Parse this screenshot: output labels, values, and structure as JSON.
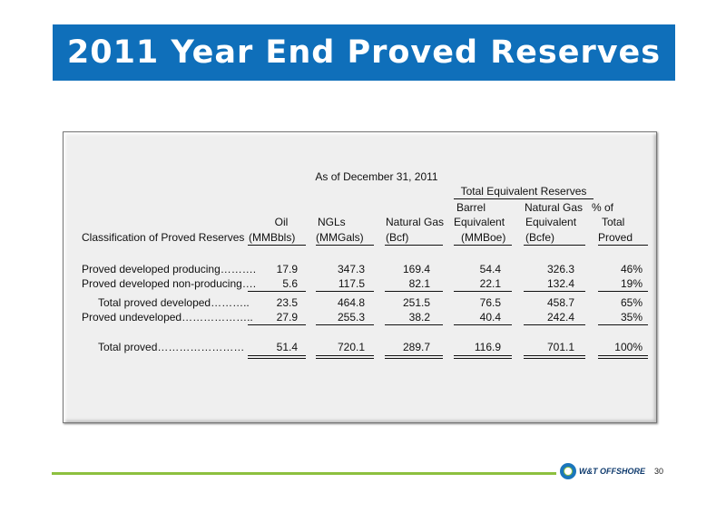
{
  "slide": {
    "title": "2011 Year End Proved Reserves",
    "page_number": "30",
    "logo_text": "W&T OFFSHORE",
    "colors": {
      "title_bar": "#0f6fba",
      "footer_line": "#8dc03f",
      "panel": "#efefef"
    }
  },
  "table": {
    "as_of": "As of December 31, 2011",
    "group_header": "Total Equivalent Reserves",
    "headers": {
      "classification": "Classification of Proved Reserves",
      "oil": [
        "Oil",
        "(MMBbls)"
      ],
      "ngls": [
        "NGLs",
        "(MMGals)"
      ],
      "gas": [
        "Natural Gas",
        "(Bcf)"
      ],
      "boe": [
        "Barrel",
        "Equivalent",
        "(MMBoe)"
      ],
      "bcfe": [
        "Natural Gas",
        "Equivalent",
        "(Bcfe)"
      ],
      "pct": [
        "% of",
        "Total",
        "Proved"
      ]
    },
    "rows": [
      {
        "label": "Proved developed producing……….",
        "oil": "17.9",
        "ngls": "347.3",
        "gas": "169.4",
        "boe": "54.4",
        "bcfe": "326.3",
        "pct": "46%"
      },
      {
        "label": "Proved developed non-producing….",
        "oil": "5.6",
        "ngls": "117.5",
        "gas": "82.1",
        "boe": "22.1",
        "bcfe": "132.4",
        "pct": "19%"
      },
      {
        "label": "Total proved developed………..",
        "oil": "23.5",
        "ngls": "464.8",
        "gas": "251.5",
        "boe": "76.5",
        "bcfe": "458.7",
        "pct": "65%"
      },
      {
        "label": "Proved undeveloped………………..",
        "oil": "27.9",
        "ngls": "255.3",
        "gas": "38.2",
        "boe": "40.4",
        "bcfe": "242.4",
        "pct": "35%"
      },
      {
        "label": "Total proved……………………",
        "oil": "51.4",
        "ngls": "720.1",
        "gas": "289.7",
        "boe": "116.9",
        "bcfe": "701.1",
        "pct": "100%"
      }
    ]
  }
}
